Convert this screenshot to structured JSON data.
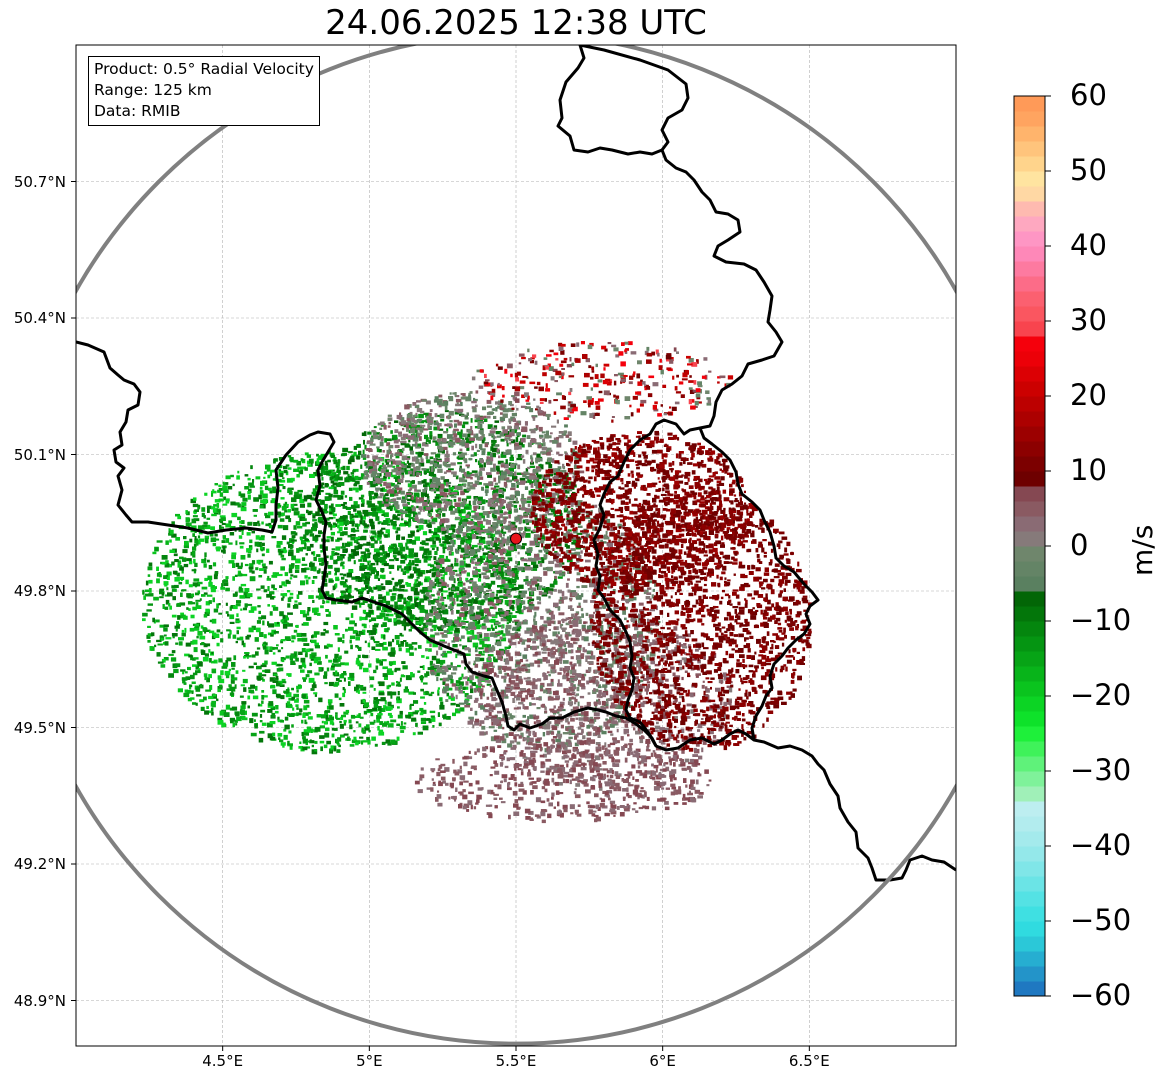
{
  "title": "24.06.2025 12:38 UTC",
  "info": {
    "line1": "Product: 0.5° Radial Velocity",
    "line2": "Range: 125 km",
    "line3": "Data: RMIB"
  },
  "map_extent": {
    "lon_min": 4.0,
    "lon_max": 7.0,
    "lat_min": 48.8,
    "lat_max": 51.0
  },
  "radar_site": {
    "lon": 5.5,
    "lat": 49.915,
    "color": "#e8141c"
  },
  "range_ring_color": "#808080",
  "y_ticks": [
    {
      "value": 50.7,
      "label": "50.7°N"
    },
    {
      "value": 50.4,
      "label": "50.4°N"
    },
    {
      "value": 50.1,
      "label": "50.1°N"
    },
    {
      "value": 49.8,
      "label": "49.8°N"
    },
    {
      "value": 49.5,
      "label": "49.5°N"
    },
    {
      "value": 49.2,
      "label": "49.2°N"
    },
    {
      "value": 48.9,
      "label": "48.9°N"
    }
  ],
  "x_ticks": [
    {
      "value": 4.5,
      "label": "4.5°E"
    },
    {
      "value": 5.0,
      "label": "5°E"
    },
    {
      "value": 5.5,
      "label": "5.5°E"
    },
    {
      "value": 6.0,
      "label": "6°E"
    },
    {
      "value": 6.5,
      "label": "6.5°E"
    }
  ],
  "colorbar": {
    "unit": "m/s",
    "min": -60,
    "max": 60,
    "ticks": [
      {
        "value": 60,
        "label": "60"
      },
      {
        "value": 50,
        "label": "50"
      },
      {
        "value": 40,
        "label": "40"
      },
      {
        "value": 30,
        "label": "30"
      },
      {
        "value": 20,
        "label": "20"
      },
      {
        "value": 10,
        "label": "10"
      },
      {
        "value": 0,
        "label": "0"
      },
      {
        "value": -10,
        "label": "−10"
      },
      {
        "value": -20,
        "label": "−20"
      },
      {
        "value": -30,
        "label": "−30"
      },
      {
        "value": -40,
        "label": "−40"
      },
      {
        "value": -50,
        "label": "−50"
      },
      {
        "value": -60,
        "label": "−60"
      }
    ],
    "bands": [
      {
        "from": -60,
        "to": -58,
        "color": "#1f78c1"
      },
      {
        "from": -58,
        "to": -56,
        "color": "#2394c9"
      },
      {
        "from": -56,
        "to": -54,
        "color": "#26aed1"
      },
      {
        "from": -54,
        "to": -52,
        "color": "#2bc8d8"
      },
      {
        "from": -52,
        "to": -50,
        "color": "#30dbe0"
      },
      {
        "from": -50,
        "to": -48,
        "color": "#3fe0e2"
      },
      {
        "from": -48,
        "to": -46,
        "color": "#54e2e4"
      },
      {
        "from": -46,
        "to": -44,
        "color": "#6be4e6"
      },
      {
        "from": -44,
        "to": -42,
        "color": "#80e6e8"
      },
      {
        "from": -42,
        "to": -40,
        "color": "#94e8ea"
      },
      {
        "from": -40,
        "to": -38,
        "color": "#a4eaec"
      },
      {
        "from": -38,
        "to": -36,
        "color": "#b2ecee"
      },
      {
        "from": -36,
        "to": -34,
        "color": "#bdeef0"
      },
      {
        "from": -34,
        "to": -32,
        "color": "#a0f0b8"
      },
      {
        "from": -32,
        "to": -30,
        "color": "#7ff29a"
      },
      {
        "from": -30,
        "to": -28,
        "color": "#5ff27a"
      },
      {
        "from": -28,
        "to": -26,
        "color": "#3ff25a"
      },
      {
        "from": -26,
        "to": -24,
        "color": "#1ef03a"
      },
      {
        "from": -24,
        "to": -22,
        "color": "#0ee22a"
      },
      {
        "from": -22,
        "to": -20,
        "color": "#0cd424"
      },
      {
        "from": -20,
        "to": -18,
        "color": "#0ac41e"
      },
      {
        "from": -18,
        "to": -16,
        "color": "#08b41a"
      },
      {
        "from": -16,
        "to": -14,
        "color": "#07a416"
      },
      {
        "from": -14,
        "to": -12,
        "color": "#059512"
      },
      {
        "from": -12,
        "to": -10,
        "color": "#04860e"
      },
      {
        "from": -10,
        "to": -8,
        "color": "#03760a"
      },
      {
        "from": -8,
        "to": -6,
        "color": "#026606"
      },
      {
        "from": -6,
        "to": -4,
        "color": "#5a8060"
      },
      {
        "from": -4,
        "to": -2,
        "color": "#648466"
      },
      {
        "from": -2,
        "to": 0,
        "color": "#6f866c"
      },
      {
        "from": 0,
        "to": 2,
        "color": "#867a7a"
      },
      {
        "from": 2,
        "to": 4,
        "color": "#8a6b74"
      },
      {
        "from": 4,
        "to": 6,
        "color": "#8a5a62"
      },
      {
        "from": 6,
        "to": 8,
        "color": "#854852"
      },
      {
        "from": 8,
        "to": 10,
        "color": "#6e0000"
      },
      {
        "from": 10,
        "to": 12,
        "color": "#7c0000"
      },
      {
        "from": 12,
        "to": 14,
        "color": "#8c0000"
      },
      {
        "from": 14,
        "to": 16,
        "color": "#9c0000"
      },
      {
        "from": 16,
        "to": 18,
        "color": "#ac0000"
      },
      {
        "from": 18,
        "to": 20,
        "color": "#bc0000"
      },
      {
        "from": 20,
        "to": 22,
        "color": "#cc0000"
      },
      {
        "from": 22,
        "to": 24,
        "color": "#dc0004"
      },
      {
        "from": 24,
        "to": 26,
        "color": "#ec0008"
      },
      {
        "from": 26,
        "to": 28,
        "color": "#f5000c"
      },
      {
        "from": 28,
        "to": 30,
        "color": "#f8444e"
      },
      {
        "from": 30,
        "to": 32,
        "color": "#fa5660"
      },
      {
        "from": 32,
        "to": 34,
        "color": "#fb6070"
      },
      {
        "from": 34,
        "to": 36,
        "color": "#fc6c88"
      },
      {
        "from": 36,
        "to": 38,
        "color": "#fd7aa0"
      },
      {
        "from": 38,
        "to": 40,
        "color": "#fe88b8"
      },
      {
        "from": 40,
        "to": 42,
        "color": "#fe96c4"
      },
      {
        "from": 42,
        "to": 44,
        "color": "#fea8c0"
      },
      {
        "from": 44,
        "to": 46,
        "color": "#febab0"
      },
      {
        "from": 46,
        "to": 48,
        "color": "#ffd8a4"
      },
      {
        "from": 48,
        "to": 50,
        "color": "#ffe4a0"
      },
      {
        "from": 50,
        "to": 52,
        "color": "#ffd48c"
      },
      {
        "from": 52,
        "to": 54,
        "color": "#ffc47c"
      },
      {
        "from": 54,
        "to": 56,
        "color": "#ffb46c"
      },
      {
        "from": 56,
        "to": 58,
        "color": "#ffa460"
      },
      {
        "from": 58,
        "to": 60,
        "color": "#ff9a58"
      }
    ]
  }
}
